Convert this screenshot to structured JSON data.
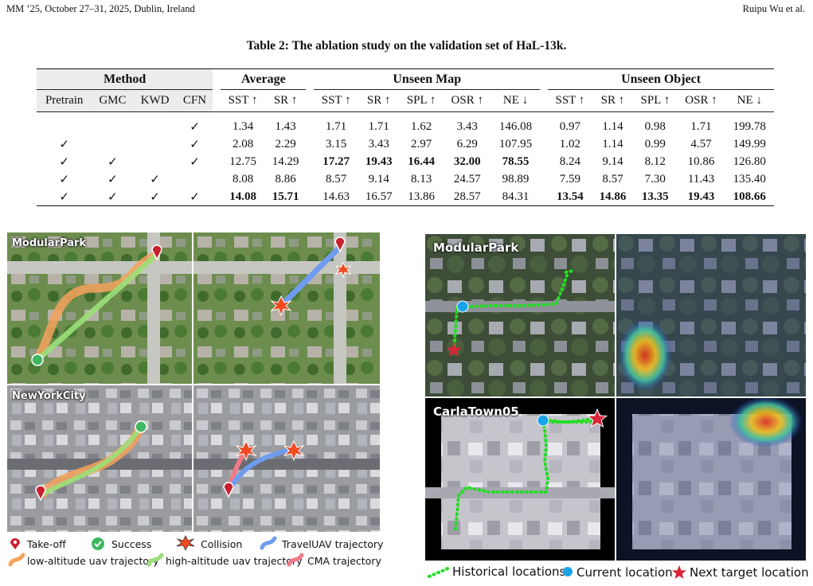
{
  "header": {
    "left": "MM ’25, October 27–31, 2025, Dublin, Ireland",
    "right": "Ruipu Wu et al."
  },
  "table": {
    "caption": "Table 2: The ablation study on the validation set of HaL-13k.",
    "groups": {
      "method": "Method",
      "average": "Average",
      "unseen_map": "Unseen Map",
      "unseen_object": "Unseen Object"
    },
    "method_columns": [
      "Pretrain",
      "GMC",
      "KWD",
      "CFN"
    ],
    "metric_columns": [
      "SST ↑",
      "SR ↑",
      "SST ↑",
      "SR ↑",
      "SPL ↑",
      "OSR ↑",
      "NE ↓",
      "SST ↑",
      "SR ↑",
      "SPL ↑",
      "OSR ↑",
      "NE ↓"
    ],
    "rows": [
      {
        "methods": [
          "",
          "",
          "",
          "✓"
        ],
        "values": [
          "1.34",
          "1.43",
          "1.71",
          "1.71",
          "1.62",
          "3.43",
          "146.08",
          "0.97",
          "1.14",
          "0.98",
          "1.71",
          "199.78"
        ],
        "bold": []
      },
      {
        "methods": [
          "✓",
          "",
          "",
          "✓"
        ],
        "values": [
          "2.08",
          "2.29",
          "3.15",
          "3.43",
          "2.97",
          "6.29",
          "107.95",
          "1.02",
          "1.14",
          "0.99",
          "4.57",
          "149.99"
        ],
        "bold": []
      },
      {
        "methods": [
          "✓",
          "✓",
          "",
          "✓"
        ],
        "values": [
          "12.75",
          "14.29",
          "17.27",
          "19.43",
          "16.44",
          "32.00",
          "78.55",
          "8.24",
          "9.14",
          "8.12",
          "10.86",
          "126.80"
        ],
        "bold": [
          2,
          3,
          4,
          5,
          6
        ]
      },
      {
        "methods": [
          "✓",
          "✓",
          "✓",
          ""
        ],
        "values": [
          "8.08",
          "8.86",
          "8.57",
          "9.14",
          "8.13",
          "24.57",
          "98.89",
          "7.59",
          "8.57",
          "7.30",
          "11.43",
          "135.40"
        ],
        "bold": []
      },
      {
        "methods": [
          "✓",
          "✓",
          "✓",
          "✓"
        ],
        "values": [
          "14.08",
          "15.71",
          "14.63",
          "16.57",
          "13.86",
          "28.57",
          "84.31",
          "13.54",
          "14.86",
          "13.35",
          "19.43",
          "108.66"
        ],
        "bold": [
          0,
          1,
          7,
          8,
          9,
          10,
          11
        ]
      }
    ]
  },
  "figure_left": {
    "maps": [
      "ModularPark",
      "NewYorkCity"
    ],
    "legend": {
      "takeoff": "Take-off",
      "success": "Success",
      "collision": "Collision",
      "traveluav": "TravelUAV trajectory",
      "low_alt": "low-altitude uav trajectory",
      "high_alt": "high-altitude uav trajectory",
      "cma": "CMA trajectory"
    },
    "colors": {
      "low_alt": "#f5a25d",
      "high_alt": "#9be07a",
      "traveluav": "#6f9cf0",
      "cma": "#f07a86",
      "takeoff": "#c8202f",
      "success": "#3fb861"
    }
  },
  "figure_right": {
    "maps": [
      "ModularPark",
      "CarlaTown05"
    ],
    "legend": {
      "historical": "Historical locations",
      "current": "Current location",
      "next": "Next target location"
    },
    "colors": {
      "historical": "#22dd22",
      "current": "#1aa3e8",
      "next": "#d62638"
    }
  }
}
